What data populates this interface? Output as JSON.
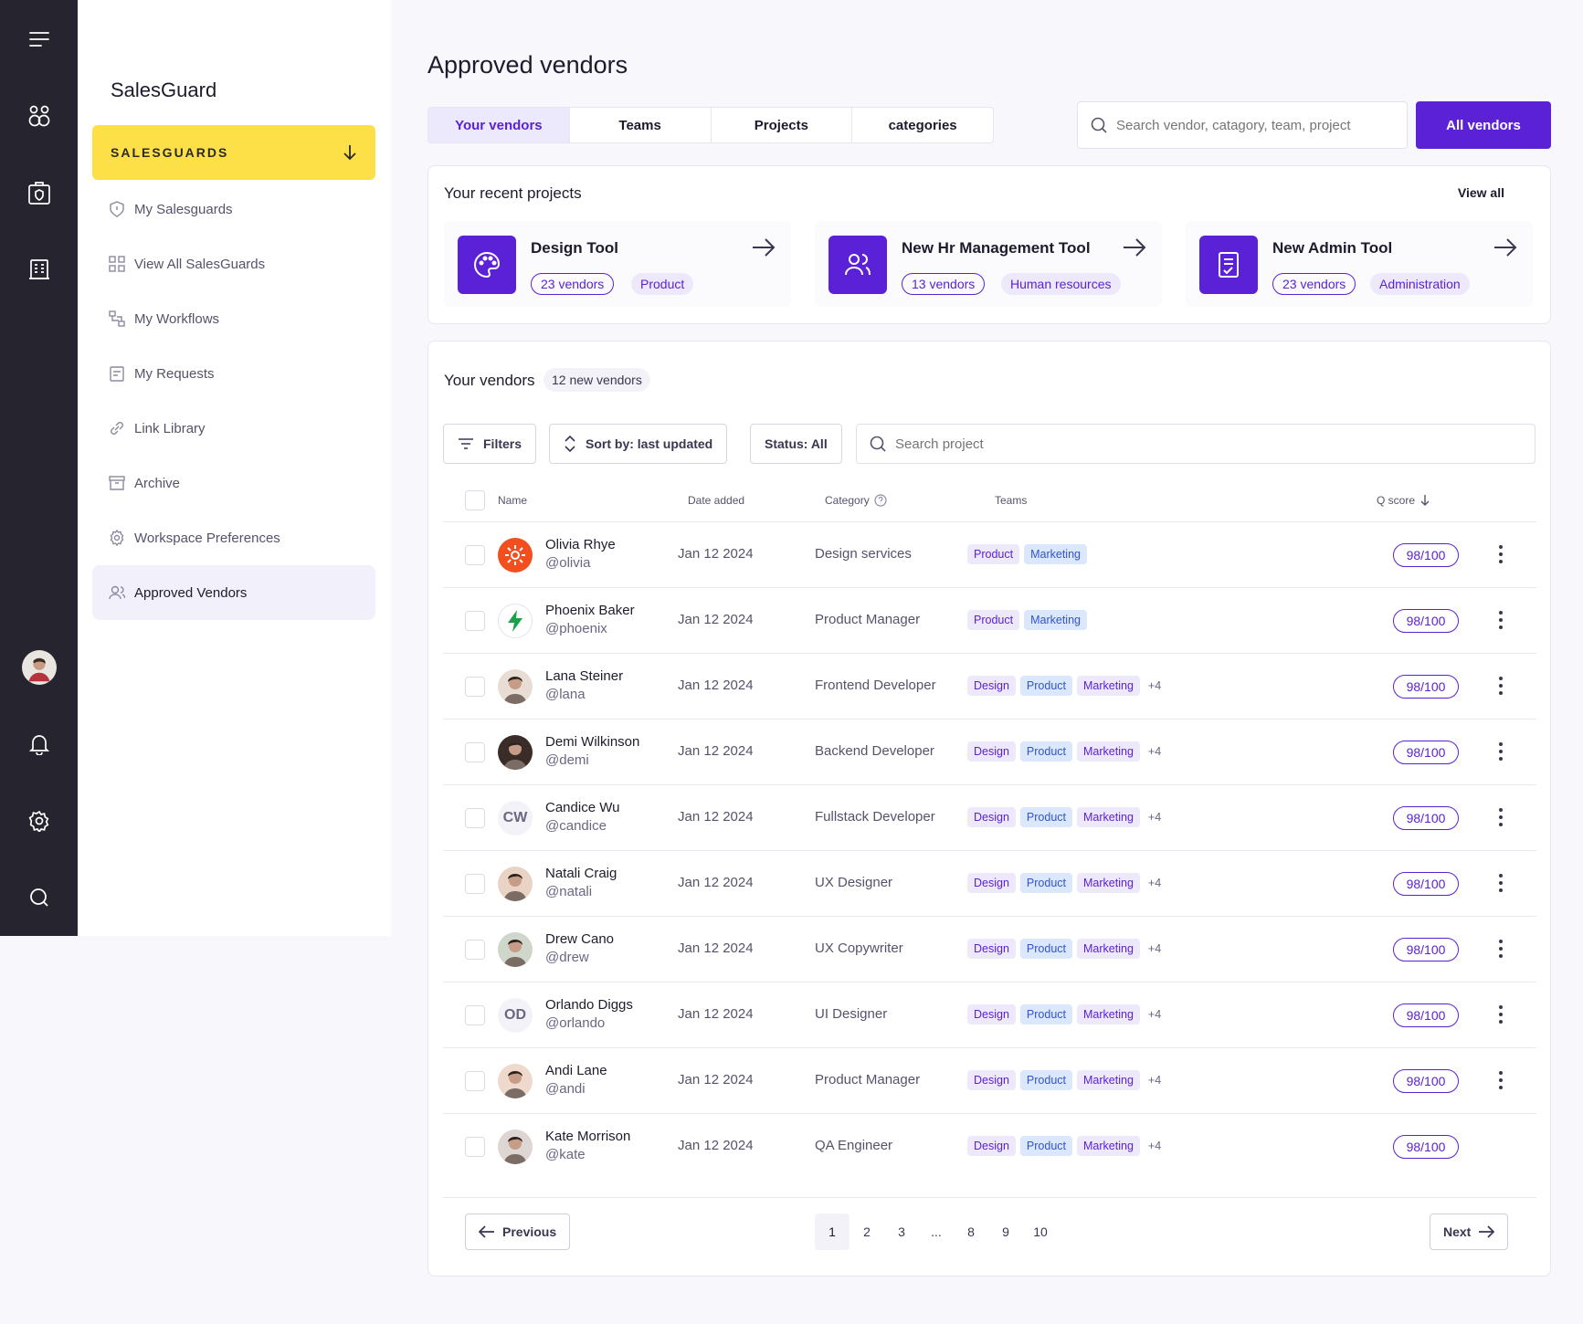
{
  "rail": {
    "icons": [
      "menu-icon",
      "users-group-icon",
      "shield-bag-icon",
      "building-icon",
      "avatar",
      "bell-icon",
      "settings-icon",
      "search-icon"
    ]
  },
  "sidebar": {
    "brand": "SalesGuard",
    "primary_button": "SALESGUARDS",
    "items": [
      {
        "label": "My Salesguards",
        "icon": "shield-icon"
      },
      {
        "label": "View All SalesGuards",
        "icon": "grid-icon"
      },
      {
        "label": "My Workflows",
        "icon": "workflow-icon"
      },
      {
        "label": "My Requests",
        "icon": "request-icon"
      },
      {
        "label": "Link Library",
        "icon": "link-icon"
      },
      {
        "label": "Archive",
        "icon": "archive-icon"
      },
      {
        "label": "Workspace Preferences",
        "icon": "gear-icon"
      },
      {
        "label": "Approved Vendors",
        "icon": "user-icon",
        "active": true
      }
    ]
  },
  "header": {
    "title": "Approved vendors",
    "tabs": [
      "Your vendors",
      "Teams",
      "Projects",
      "categories"
    ],
    "search_placeholder": "Search vendor, catagory, team, project",
    "all_vendors_button": "All vendors"
  },
  "recent": {
    "title": "Your recent projects",
    "view_all": "View all",
    "projects": [
      {
        "name": "Design Tool",
        "vendors": "23 vendors",
        "category": "Product",
        "icon": "palette-icon"
      },
      {
        "name": "New Hr Management Tool",
        "vendors": "13 vendors",
        "category": "Human resources",
        "icon": "users-icon"
      },
      {
        "name": "New Admin Tool",
        "vendors": "23 vendors",
        "category": "Administration",
        "icon": "checklist-icon"
      }
    ]
  },
  "vendors": {
    "title": "Your vendors",
    "badge": "12 new vendors",
    "filters_label": "Filters",
    "sort_label": "Sort by: last updated",
    "status_label": "Status: All",
    "search_placeholder": "Search project",
    "columns": {
      "name": "Name",
      "date": "Date added",
      "category": "Category",
      "teams": "Teams",
      "qscore": "Q score"
    },
    "rows": [
      {
        "name": "Olivia Rhye",
        "handle": "@olivia",
        "date": "Jan 12 2024",
        "category": "Design services",
        "teams": [
          "Product",
          "Marketing"
        ],
        "more": "",
        "score": "98/100",
        "avatar": "sun",
        "initials": "",
        "kebab": true
      },
      {
        "name": "Phoenix Baker",
        "handle": "@phoenix",
        "date": "Jan 12 2024",
        "category": "Product Manager",
        "teams": [
          "Product",
          "Marketing"
        ],
        "more": "",
        "score": "98/100",
        "avatar": "bolt",
        "initials": "",
        "kebab": true
      },
      {
        "name": "Lana Steiner",
        "handle": "@lana",
        "date": "Jan 12 2024",
        "category": "Frontend Developer",
        "teams": [
          "Design",
          "Product",
          "Marketing"
        ],
        "more": "+4",
        "score": "98/100",
        "avatar": "photo",
        "initials": "",
        "kebab": true
      },
      {
        "name": "Demi Wilkinson",
        "handle": "@demi",
        "date": "Jan 12 2024",
        "category": "Backend Developer",
        "teams": [
          "Design",
          "Product",
          "Marketing"
        ],
        "more": "+4",
        "score": "98/100",
        "avatar": "photo",
        "initials": "",
        "kebab": true
      },
      {
        "name": "Candice Wu",
        "handle": "@candice",
        "date": "Jan 12 2024",
        "category": "Fullstack Developer",
        "teams": [
          "Design",
          "Product",
          "Marketing"
        ],
        "more": "+4",
        "score": "98/100",
        "avatar": "initials",
        "initials": "CW",
        "kebab": true
      },
      {
        "name": "Natali Craig",
        "handle": "@natali",
        "date": "Jan 12 2024",
        "category": "UX Designer",
        "teams": [
          "Design",
          "Product",
          "Marketing"
        ],
        "more": "+4",
        "score": "98/100",
        "avatar": "photo",
        "initials": "",
        "kebab": true
      },
      {
        "name": "Drew Cano",
        "handle": "@drew",
        "date": "Jan 12 2024",
        "category": "UX Copywriter",
        "teams": [
          "Design",
          "Product",
          "Marketing"
        ],
        "more": "+4",
        "score": "98/100",
        "avatar": "photo",
        "initials": "",
        "kebab": true
      },
      {
        "name": "Orlando Diggs",
        "handle": "@orlando",
        "date": "Jan 12 2024",
        "category": "UI Designer",
        "teams": [
          "Design",
          "Product",
          "Marketing"
        ],
        "more": "+4",
        "score": "98/100",
        "avatar": "initials",
        "initials": "OD",
        "kebab": true
      },
      {
        "name": "Andi Lane",
        "handle": "@andi",
        "date": "Jan 12 2024",
        "category": "Product Manager",
        "teams": [
          "Design",
          "Product",
          "Marketing"
        ],
        "more": "+4",
        "score": "98/100",
        "avatar": "photo",
        "initials": "",
        "kebab": true
      },
      {
        "name": "Kate Morrison",
        "handle": "@kate",
        "date": "Jan 12 2024",
        "category": "QA Engineer",
        "teams": [
          "Design",
          "Product",
          "Marketing"
        ],
        "more": "+4",
        "score": "98/100",
        "avatar": "photo",
        "initials": "",
        "kebab": false
      }
    ]
  },
  "pagination": {
    "previous": "Previous",
    "next": "Next",
    "pages": [
      "1",
      "2",
      "3",
      "...",
      "8",
      "9",
      "10"
    ],
    "current": "1"
  },
  "colors": {
    "accent": "#5b21d6",
    "highlight": "#fde047",
    "rail": "#26252f"
  }
}
